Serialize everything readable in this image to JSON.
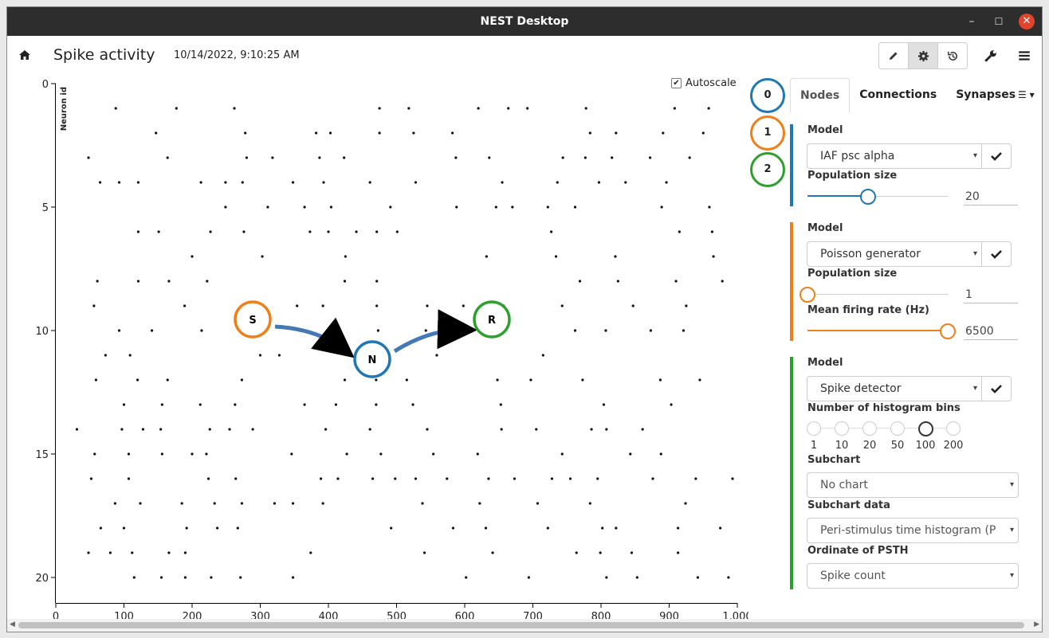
{
  "window": {
    "title": "NEST Desktop",
    "controls": {
      "minimize": "–",
      "maximize": "☐",
      "close": "✕"
    }
  },
  "toolbar": {
    "page_title": "Spike activity",
    "timestamp": "10/14/2022, 9:10:25 AM",
    "icons": [
      "home-icon",
      "pencil-icon",
      "gear-icon",
      "history-icon",
      "wrench-icon",
      "menu-icon"
    ]
  },
  "chart_data": {
    "type": "scatter",
    "ylabel": "Neuron id",
    "xlabel": "",
    "xlim": [
      0,
      1000
    ],
    "ylim": [
      0,
      20
    ],
    "y_inverted": true,
    "x_ticks": [
      "0",
      "100",
      "200",
      "300",
      "400",
      "500",
      "600",
      "700",
      "800",
      "900",
      "1,000"
    ],
    "y_ticks": [
      "0",
      "5",
      "10",
      "15",
      "20"
    ],
    "marker_color": "#111111",
    "spikes": [
      {
        "id": 1,
        "t": [
          88,
          177,
          262,
          475,
          518,
          620,
          664,
          692,
          778,
          908,
          958
        ]
      },
      {
        "id": 2,
        "t": [
          147,
          278,
          382,
          403,
          475,
          525,
          582,
          784,
          822,
          891,
          950
        ]
      },
      {
        "id": 3,
        "t": [
          48,
          164,
          280,
          318,
          387,
          423,
          587,
          636,
          744,
          777,
          816,
          872,
          930
        ]
      },
      {
        "id": 4,
        "t": [
          65,
          93,
          121,
          213,
          249,
          274,
          348,
          393,
          461,
          528,
          655,
          736,
          797,
          836,
          896
        ]
      },
      {
        "id": 5,
        "t": [
          249,
          311,
          365,
          404,
          491,
          588,
          646,
          670,
          722,
          762,
          889,
          959
        ]
      },
      {
        "id": 6,
        "t": [
          121,
          151,
          227,
          276,
          373,
          400,
          441,
          471,
          501,
          727,
          915,
          963
        ]
      },
      {
        "id": 7,
        "t": [
          200,
          303,
          425,
          632,
          734,
          821,
          965
        ]
      },
      {
        "id": 8,
        "t": [
          61,
          121,
          166,
          222,
          424,
          471,
          769,
          825,
          910,
          978
        ]
      },
      {
        "id": 9,
        "t": [
          56,
          189,
          354,
          392,
          471,
          545,
          598,
          657,
          743,
          847,
          925
        ]
      },
      {
        "id": 10,
        "t": [
          93,
          141,
          214,
          473,
          543,
          644,
          762,
          807,
          873,
          921
        ]
      },
      {
        "id": 11,
        "t": [
          73,
          109,
          300,
          328,
          474,
          559,
          715
        ]
      },
      {
        "id": 12,
        "t": [
          59,
          120,
          164,
          273,
          424,
          470,
          515,
          648,
          697,
          773,
          887,
          945
        ]
      },
      {
        "id": 13,
        "t": [
          100,
          156,
          212,
          263,
          365,
          411,
          470,
          524,
          653,
          804,
          903
        ]
      },
      {
        "id": 14,
        "t": [
          31,
          97,
          128,
          154,
          226,
          255,
          289,
          396,
          461,
          545,
          654,
          705,
          786,
          808,
          861
        ]
      },
      {
        "id": 15,
        "t": [
          57,
          107,
          156,
          200,
          221,
          346,
          427,
          477,
          554,
          619,
          743,
          843,
          888
        ]
      },
      {
        "id": 16,
        "t": [
          52,
          107,
          224,
          264,
          389,
          414,
          465,
          498,
          528,
          574,
          635,
          673,
          728,
          755,
          795,
          876,
          939,
          993
        ]
      },
      {
        "id": 17,
        "t": [
          87,
          124,
          185,
          233,
          273,
          321,
          348,
          392,
          538,
          622,
          707,
          784,
          924
        ]
      },
      {
        "id": 18,
        "t": [
          66,
          100,
          192,
          237,
          267,
          492,
          583,
          631,
          722,
          802,
          822,
          913,
          975
        ]
      },
      {
        "id": 19,
        "t": [
          48,
          80,
          112,
          166,
          190,
          374,
          541,
          641,
          764,
          799,
          845,
          913
        ]
      },
      {
        "id": 20,
        "t": [
          115,
          155,
          190,
          228,
          271,
          348,
          602,
          694,
          808,
          853,
          942,
          987
        ]
      }
    ]
  },
  "autoscale": {
    "label": "Autoscale",
    "checked": "✔"
  },
  "network_graph": {
    "nodes": [
      {
        "label": "S",
        "color": "#f07f18"
      },
      {
        "label": "N",
        "color": "#1f77b4"
      },
      {
        "label": "R",
        "color": "#2ca02c"
      }
    ],
    "edge_color": "#4479b5"
  },
  "sidebar": {
    "node_ids": [
      {
        "label": "0",
        "color": "#1f77b4"
      },
      {
        "label": "1",
        "color": "#f07f18"
      },
      {
        "label": "2",
        "color": "#2ca02c"
      }
    ],
    "tabs": [
      "Nodes",
      "Connections",
      "Synapses"
    ],
    "tab_more": "☰ ▾",
    "cards": [
      {
        "color": "#1f77b4",
        "model_label": "Model",
        "model_value": "IAF psc alpha",
        "param1_label": "Population size",
        "param1_value": "20",
        "param1_fraction": 0.43
      },
      {
        "color": "#f07f18",
        "model_label": "Model",
        "model_value": "Poisson generator",
        "param1_label": "Population size",
        "param1_value": "1",
        "param1_fraction": 0.0,
        "param2_label": "Mean firing rate (Hz)",
        "param2_value": "6500",
        "param2_fraction": 1.0
      },
      {
        "color": "#2ca02c",
        "model_label": "Model",
        "model_value": "Spike detector",
        "bins_label": "Number of histogram bins",
        "bins": [
          "1",
          "10",
          "20",
          "50",
          "100",
          "200"
        ],
        "bins_selected": "100",
        "subchart_label": "Subchart",
        "subchart_value": "No chart",
        "subchart_data_label": "Subchart data",
        "subchart_data_value": "Peri-stimulus time histogram (P",
        "ordinate_label": "Ordinate of PSTH",
        "ordinate_value": "Spike count"
      }
    ]
  }
}
